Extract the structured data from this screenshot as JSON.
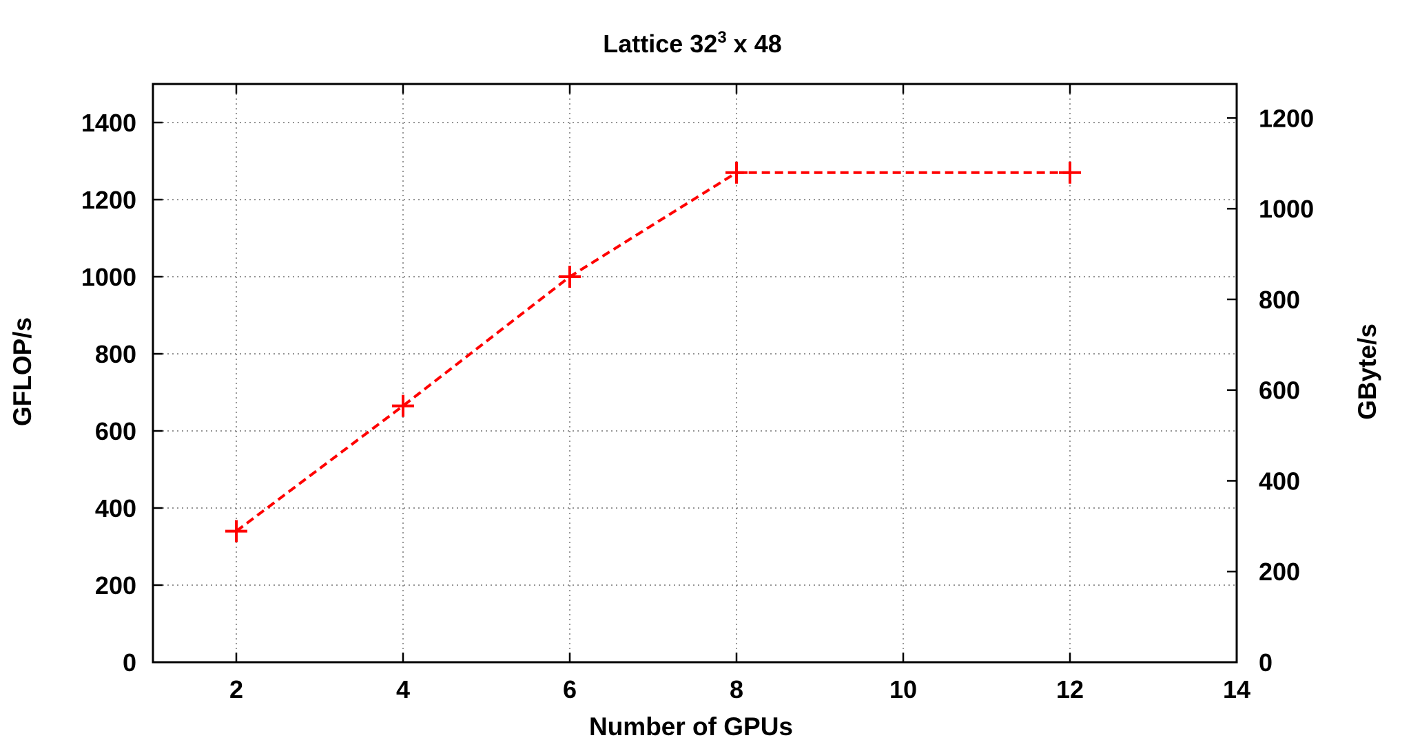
{
  "chart_data": {
    "type": "line",
    "title": {
      "prefix": "Lattice 32",
      "superscript": "3",
      "suffix": " x 48"
    },
    "xlabel": "Number of GPUs",
    "ylabel": "GFLOP/s",
    "y2label": "GByte/s",
    "xlim": [
      1,
      14
    ],
    "ylim": [
      0,
      1500
    ],
    "y2lim": [
      0,
      1275
    ],
    "x_ticks": [
      2,
      4,
      6,
      8,
      10,
      12,
      14
    ],
    "y_ticks": [
      0,
      200,
      400,
      600,
      800,
      1000,
      1200,
      1400
    ],
    "y2_ticks": [
      0,
      200,
      400,
      600,
      800,
      1000,
      1200
    ],
    "grid": true,
    "series": [
      {
        "x": [
          2,
          4,
          6,
          8,
          12
        ],
        "values": [
          340,
          665,
          1000,
          1270,
          1270
        ],
        "color": "#ff0000",
        "line_style": "dashed",
        "marker": "plus"
      }
    ]
  }
}
